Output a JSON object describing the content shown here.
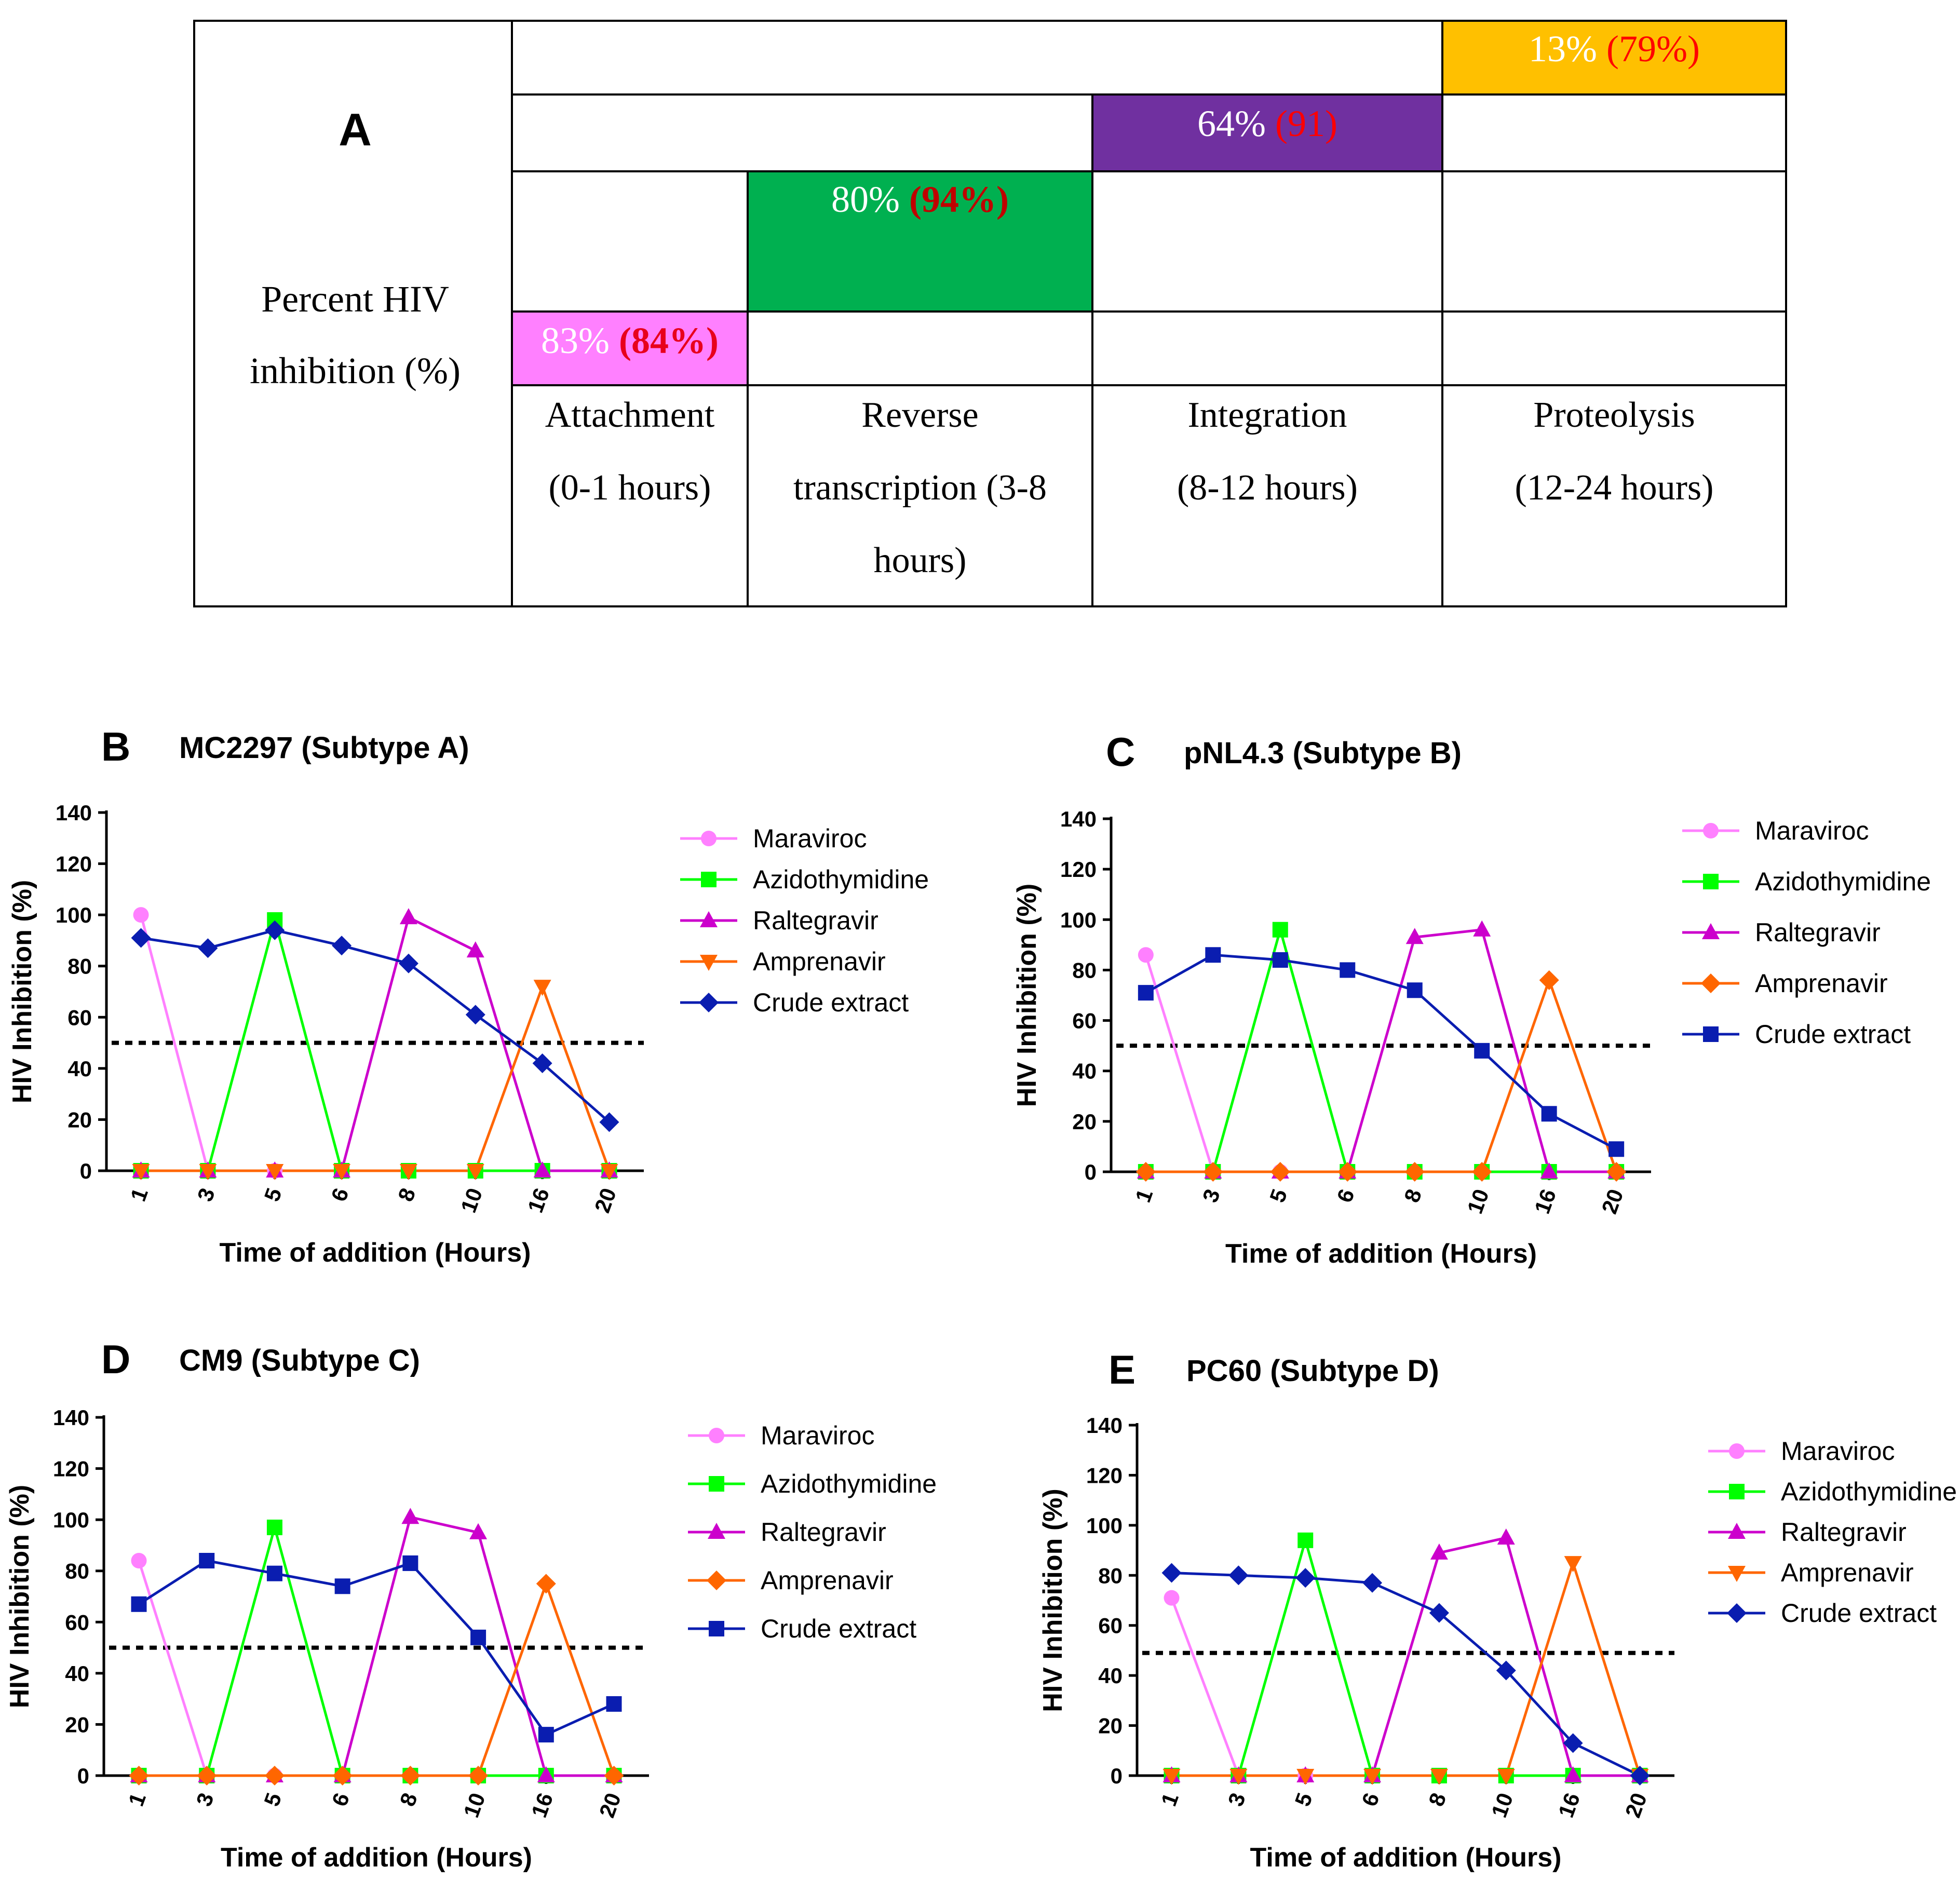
{
  "panel_a": {
    "letter": "A",
    "ylabel_line1": "Percent HIV",
    "ylabel_line2": "inhibition (%)",
    "stages": [
      {
        "line1": "Attachment",
        "line2": "(0-1 hours)",
        "line3": ""
      },
      {
        "line1": "Reverse",
        "line2": "transcription (3-8",
        "line3": "hours)"
      },
      {
        "line1": "Integration",
        "line2": "(8-12 hours)",
        "line3": ""
      },
      {
        "line1": "Proteolysis",
        "line2": "(12-24 hours)",
        "line3": ""
      }
    ],
    "bars": [
      {
        "stage": "Attachment",
        "value": "83%",
        "paren": "(84%)",
        "color": "#FF80FF",
        "value_color": "#FFFFFF",
        "paren_color": "#E8001C"
      },
      {
        "stage": "Reverse transcription",
        "value": "80%",
        "paren": "(94%)",
        "color": "#00B050",
        "value_color": "#FFFFFF",
        "paren_color": "#C00000"
      },
      {
        "stage": "Integration",
        "value": "64%",
        "paren": "(91)",
        "color": "#7030A0",
        "value_color": "#FFFFFF",
        "paren_color": "#FF0000"
      },
      {
        "stage": "Proteolysis",
        "value": "13%",
        "paren": "(79%)",
        "color": "#FFC000",
        "value_color": "#FFFFFF",
        "paren_color": "#FF0000"
      }
    ]
  },
  "chart_data": [
    {
      "panel": "B",
      "type": "line",
      "title": "MC2297 (Subtype A)",
      "xlabel": "Time of addition (Hours)",
      "ylabel": "HIV Inhibition (%)",
      "categories": [
        "1",
        "3",
        "5",
        "6",
        "8",
        "10",
        "16",
        "20"
      ],
      "ylim": [
        0,
        140
      ],
      "yticks": [
        "0",
        "20",
        "40",
        "60",
        "80",
        "100",
        "120",
        "140"
      ],
      "threshold": 50,
      "series": [
        {
          "name": "Maraviroc",
          "color": "#FF80FF",
          "marker": "circle",
          "values": [
            100,
            0,
            0,
            0,
            0,
            0,
            0,
            0
          ]
        },
        {
          "name": "Azidothymidine",
          "color": "#00FF00",
          "marker": "square",
          "values": [
            0,
            0,
            98,
            0,
            0,
            0,
            0,
            0
          ]
        },
        {
          "name": "Raltegravir",
          "color": "#CC00CC",
          "marker": "triangle-up",
          "values": [
            0,
            0,
            0,
            0,
            99,
            86,
            0,
            0
          ]
        },
        {
          "name": "Amprenavir",
          "color": "#FF6600",
          "marker": "triangle-down",
          "values": [
            0,
            0,
            0,
            0,
            0,
            0,
            72,
            0
          ]
        },
        {
          "name": "Crude extract",
          "color": "#0A1DB0",
          "marker": "diamond",
          "values": [
            91,
            87,
            94,
            88,
            81,
            61,
            42,
            19
          ]
        }
      ]
    },
    {
      "panel": "C",
      "type": "line",
      "title": "pNL4.3 (Subtype B)",
      "xlabel": "Time of addition (Hours)",
      "ylabel": "HIV Inhibition (%)",
      "categories": [
        "1",
        "3",
        "5",
        "6",
        "8",
        "10",
        "16",
        "20"
      ],
      "ylim": [
        0,
        140
      ],
      "yticks": [
        "0",
        "20",
        "40",
        "60",
        "80",
        "100",
        "120",
        "140"
      ],
      "threshold": 50,
      "series": [
        {
          "name": "Maraviroc",
          "color": "#FF80FF",
          "marker": "circle",
          "values": [
            86,
            0,
            0,
            0,
            0,
            0,
            0,
            0
          ]
        },
        {
          "name": "Azidothymidine",
          "color": "#00FF00",
          "marker": "square",
          "values": [
            0,
            0,
            96,
            0,
            0,
            0,
            0,
            0
          ]
        },
        {
          "name": "Raltegravir",
          "color": "#CC00CC",
          "marker": "triangle-up",
          "values": [
            0,
            0,
            0,
            0,
            93,
            96,
            0,
            0
          ]
        },
        {
          "name": "Amprenavir",
          "color": "#FF6600",
          "marker": "diamond",
          "values": [
            0,
            0,
            0,
            0,
            0,
            0,
            76,
            0
          ]
        },
        {
          "name": "Crude extract",
          "color": "#0A1DB0",
          "marker": "square",
          "values": [
            71,
            86,
            84,
            80,
            72,
            48,
            23,
            9
          ]
        }
      ]
    },
    {
      "panel": "D",
      "type": "line",
      "title": "CM9 (Subtype C)",
      "xlabel": "Time of addition (Hours)",
      "ylabel": "HIV Inhibition (%)",
      "categories": [
        "1",
        "3",
        "5",
        "6",
        "8",
        "10",
        "16",
        "20"
      ],
      "ylim": [
        0,
        140
      ],
      "yticks": [
        "0",
        "20",
        "40",
        "60",
        "80",
        "100",
        "120",
        "140"
      ],
      "threshold": 50,
      "series": [
        {
          "name": "Maraviroc",
          "color": "#FF80FF",
          "marker": "circle",
          "values": [
            84,
            0,
            0,
            0,
            0,
            0,
            0,
            0
          ]
        },
        {
          "name": "Azidothymidine",
          "color": "#00FF00",
          "marker": "square",
          "values": [
            0,
            0,
            97,
            0,
            0,
            0,
            0,
            0
          ]
        },
        {
          "name": "Raltegravir",
          "color": "#CC00CC",
          "marker": "triangle-up",
          "values": [
            0,
            0,
            0,
            0,
            101,
            95,
            0,
            0
          ]
        },
        {
          "name": "Amprenavir",
          "color": "#FF6600",
          "marker": "diamond",
          "values": [
            0,
            0,
            0,
            0,
            0,
            0,
            75,
            0
          ]
        },
        {
          "name": "Crude extract",
          "color": "#0A1DB0",
          "marker": "square",
          "values": [
            67,
            84,
            79,
            74,
            83,
            54,
            16,
            28
          ]
        }
      ]
    },
    {
      "panel": "E",
      "type": "line",
      "title": "PC60 (Subtype D)",
      "xlabel": "Time of addition (Hours)",
      "ylabel": "HIV Inhibition (%)",
      "categories": [
        "1",
        "3",
        "5",
        "6",
        "8",
        "10",
        "16",
        "20"
      ],
      "ylim": [
        0,
        140
      ],
      "yticks": [
        "0",
        "20",
        "40",
        "60",
        "80",
        "100",
        "120",
        "140"
      ],
      "threshold": 49,
      "series": [
        {
          "name": "Maraviroc",
          "color": "#FF80FF",
          "marker": "circle",
          "values": [
            71,
            0,
            0,
            0,
            0,
            0,
            0,
            0
          ]
        },
        {
          "name": "Azidothymidine",
          "color": "#00FF00",
          "marker": "square",
          "values": [
            0,
            0,
            94,
            0,
            0,
            0,
            0,
            0
          ]
        },
        {
          "name": "Raltegravir",
          "color": "#CC00CC",
          "marker": "triangle-up",
          "values": [
            0,
            0,
            0,
            0,
            89,
            95,
            0,
            0
          ]
        },
        {
          "name": "Amprenavir",
          "color": "#FF6600",
          "marker": "triangle-down",
          "values": [
            0,
            0,
            0,
            0,
            0,
            0,
            85,
            0
          ]
        },
        {
          "name": "Crude extract",
          "color": "#0A1DB0",
          "marker": "diamond",
          "values": [
            81,
            80,
            79,
            77,
            65,
            42,
            13,
            0
          ]
        }
      ]
    }
  ]
}
